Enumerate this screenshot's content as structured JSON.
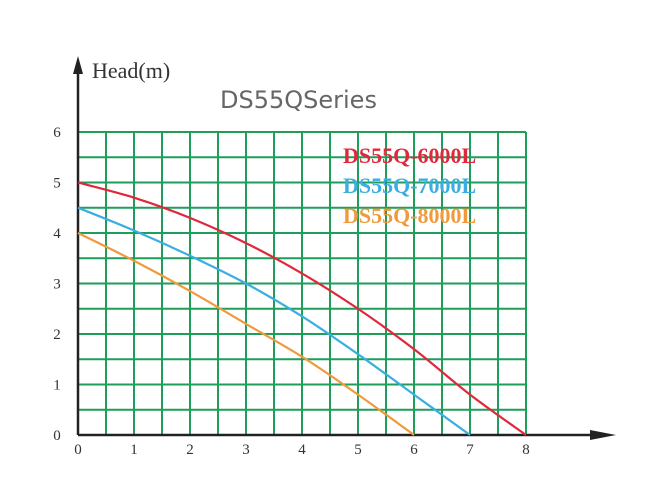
{
  "chart_data": {
    "type": "line",
    "title": "DS55QSeries",
    "ylabel": "Head(m)",
    "xlabel": "",
    "xlim": [
      0,
      8
    ],
    "ylim": [
      0,
      6
    ],
    "x_ticks": [
      "0",
      "1",
      "2",
      "3",
      "4",
      "5",
      "6",
      "7",
      "8"
    ],
    "y_ticks": [
      "0",
      "1",
      "2",
      "3",
      "4",
      "5",
      "6"
    ],
    "grid": true,
    "grid_color": "#1f9e5a",
    "background_color": "#ffffff",
    "legend_position": "top-right",
    "series": [
      {
        "name": "DS55Q-6000L",
        "color": "#e0283c",
        "points": [
          [
            0,
            5.0
          ],
          [
            1,
            4.7
          ],
          [
            2,
            4.3
          ],
          [
            3,
            3.8
          ],
          [
            4,
            3.2
          ],
          [
            5,
            2.5
          ],
          [
            6,
            1.7
          ],
          [
            7,
            0.8
          ],
          [
            8,
            0.0
          ]
        ]
      },
      {
        "name": "DS55Q-7000L",
        "color": "#3aaee0",
        "points": [
          [
            0,
            4.5
          ],
          [
            1,
            4.05
          ],
          [
            2,
            3.55
          ],
          [
            3,
            3.0
          ],
          [
            4,
            2.35
          ],
          [
            5,
            1.6
          ],
          [
            6,
            0.8
          ],
          [
            7,
            0.0
          ]
        ]
      },
      {
        "name": "DS55Q-8000L",
        "color": "#f09a3c",
        "points": [
          [
            0,
            4.0
          ],
          [
            1,
            3.45
          ],
          [
            2,
            2.85
          ],
          [
            3,
            2.2
          ],
          [
            4,
            1.55
          ],
          [
            5,
            0.8
          ],
          [
            6,
            0.0
          ]
        ]
      }
    ]
  }
}
